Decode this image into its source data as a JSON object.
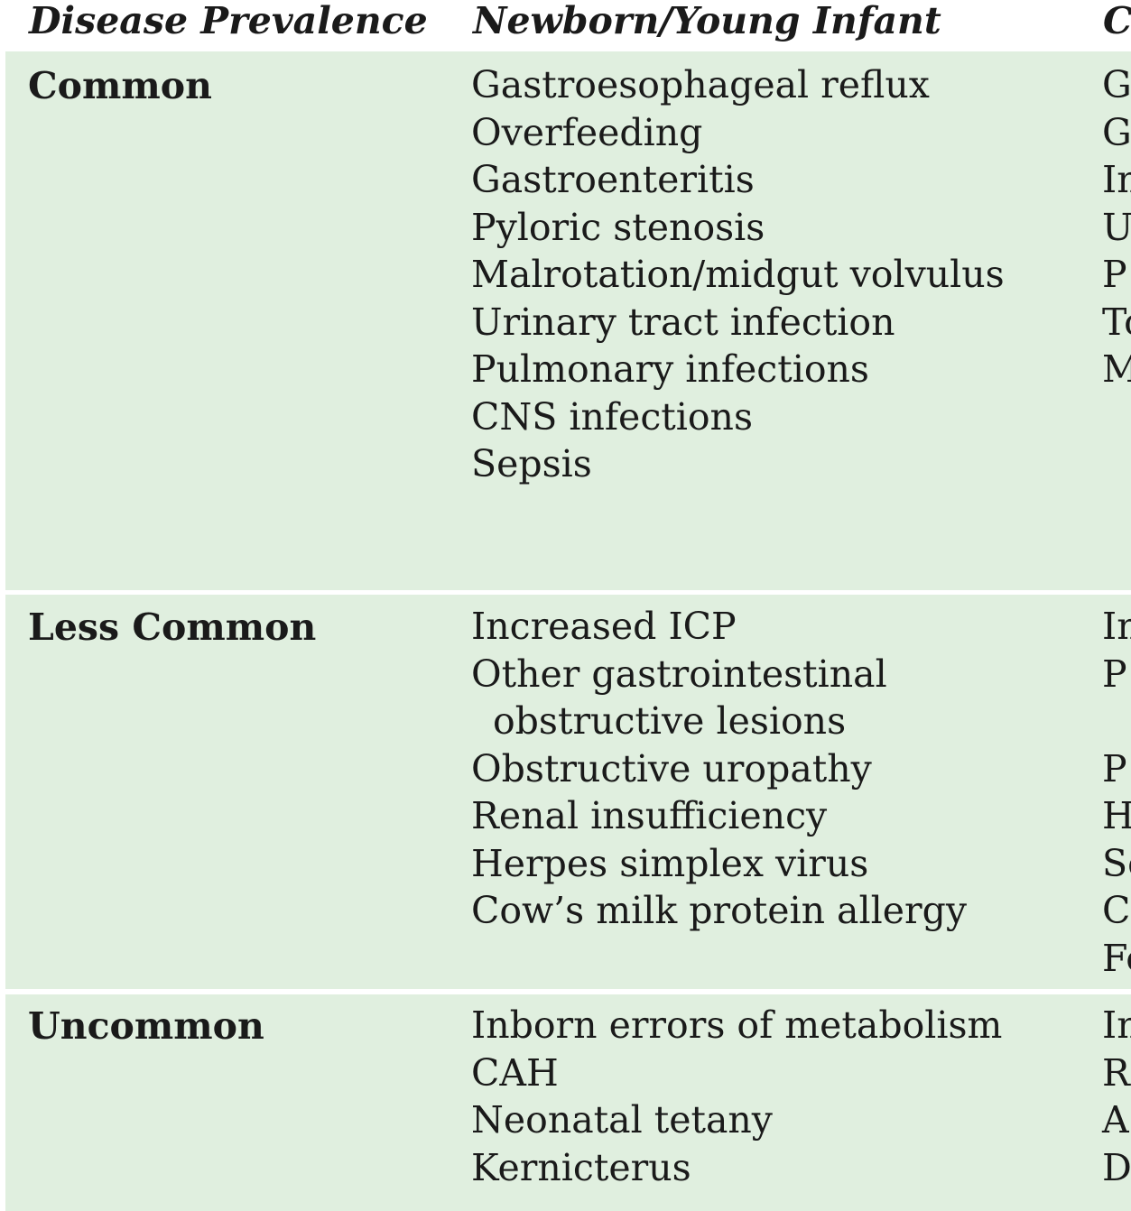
{
  "header": {
    "disease_prevalence": "Disease Prevalence",
    "newborn": "Newborn/Young Infant",
    "next": "C"
  },
  "rows": [
    {
      "prevalence": "Common",
      "newborn": [
        "Gastroesophageal reflux",
        "Overfeeding",
        "Gastroenteritis",
        "Pyloric stenosis",
        "Malrotation/midgut volvulus",
        "Urinary tract infection",
        "Pulmonary infections",
        "CNS infections",
        "Sepsis"
      ],
      "next": [
        "G",
        "G",
        "In",
        "U",
        "P",
        "To",
        "M"
      ]
    },
    {
      "prevalence": "Less Common",
      "newborn": [
        "Increased ICP",
        "Other gastrointestinal",
        "obstructive lesions",
        "Obstructive uropathy",
        "Renal insufficiency",
        "Herpes simplex virus",
        "Cow’s milk protein allergy"
      ],
      "next": [
        "In",
        "P",
        "",
        "P",
        "H",
        "Se",
        "C",
        "Fe"
      ]
    },
    {
      "prevalence": "Uncommon",
      "newborn": [
        "Inborn errors of metabolism",
        "CAH",
        "Neonatal tetany",
        "Kernicterus"
      ],
      "next": [
        "In",
        "R",
        "A",
        "D"
      ]
    }
  ]
}
